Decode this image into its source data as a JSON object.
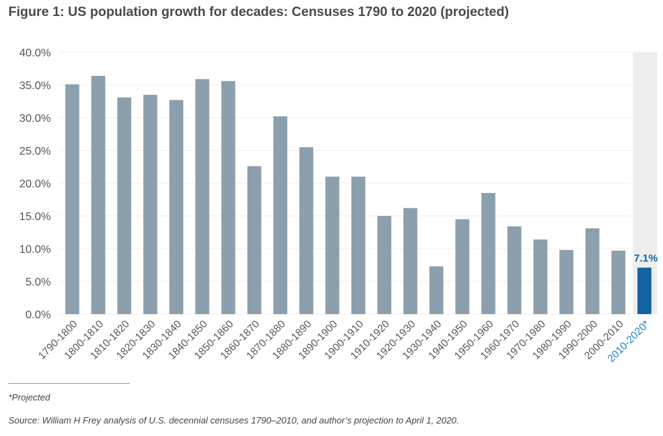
{
  "chart_data": {
    "type": "bar",
    "title": "Figure 1: US population growth for decades: Censuses 1790 to 2020 (projected)",
    "categories": [
      "1790-1800",
      "1800-1810",
      "1810-1820",
      "1820-1830",
      "1830-1840",
      "1840-1850",
      "1850-1860",
      "1860-1870",
      "1870-1880",
      "1880-1890",
      "1890-1900",
      "1900-1910",
      "1910-1920",
      "1920-1930",
      "1930-1940",
      "1940-1950",
      "1950-1960",
      "1960-1970",
      "1970-1980",
      "1980-1990",
      "1990-2000",
      "2000-2010",
      "2010-2020*"
    ],
    "values": [
      35.1,
      36.4,
      33.1,
      33.5,
      32.7,
      35.9,
      35.6,
      22.6,
      30.2,
      25.5,
      21.0,
      21.0,
      15.0,
      16.2,
      7.3,
      14.5,
      18.5,
      13.4,
      11.4,
      9.8,
      13.1,
      9.7,
      7.1
    ],
    "projected_index": 22,
    "highlight_label": "7.1%",
    "ylim": [
      0,
      40
    ],
    "yticks": [
      "0.0%",
      "5.0%",
      "10.0%",
      "15.0%",
      "20.0%",
      "25.0%",
      "30.0%",
      "35.0%",
      "40.0%"
    ],
    "xlabel": "",
    "ylabel": "",
    "colors": {
      "bar": "#8c9fad",
      "projected_bar": "#1264a3",
      "projected_label": "#1c82c0",
      "shade": "#eeeeee",
      "grid": "#ececec",
      "tick_text": "#555555"
    }
  },
  "footnote": "*Projected",
  "source": "Source: William H Frey analysis of U.S. decennial censuses 1790–2010, and author’s projection to April 1, 2020."
}
